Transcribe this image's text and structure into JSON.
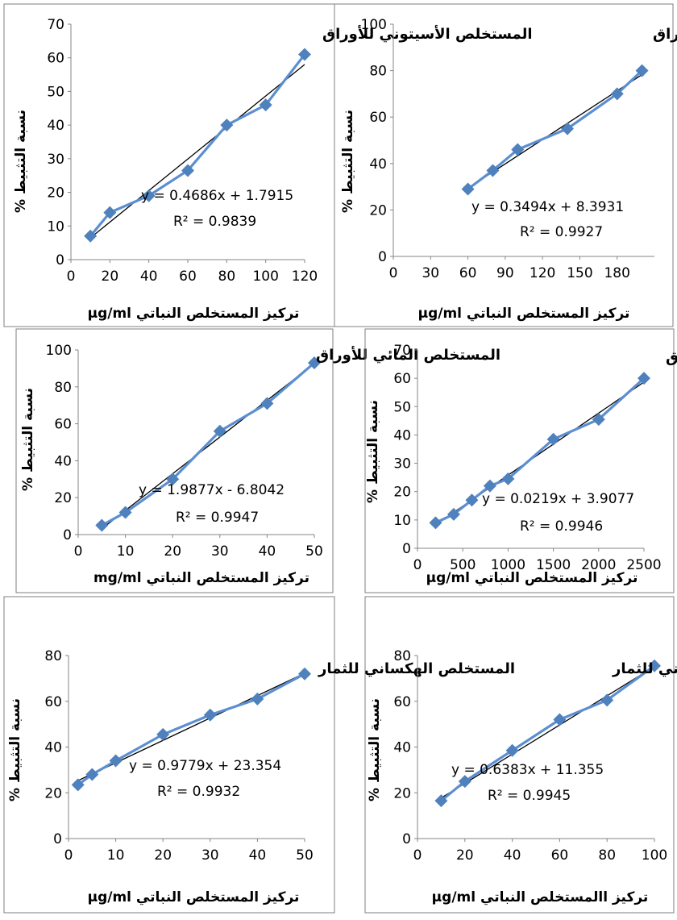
{
  "common": {
    "ylabel": "نسبة التثبيط %",
    "colors": {
      "series": "#5b8fd1",
      "marker": "#4f81bd",
      "trend": "#000000",
      "frame": "#7f7f7f",
      "text": "#000000"
    },
    "marker": "diamond"
  },
  "chart_data": [
    {
      "type": "scatter",
      "title": "المستخلص الأسيتوني للأوراق",
      "xlabel": "تركيز المستخلص النباتي µg/ml",
      "ylabel": "نسبة التثبيط %",
      "xlim": [
        0,
        120
      ],
      "ylim": [
        0,
        70
      ],
      "xticks": [
        0,
        20,
        40,
        60,
        80,
        100,
        120
      ],
      "yticks": [
        0,
        10,
        20,
        30,
        40,
        50,
        60,
        70
      ],
      "x": [
        10,
        20,
        40,
        60,
        80,
        100,
        120
      ],
      "y": [
        7,
        14,
        19,
        26.5,
        40,
        46,
        61
      ],
      "trendline": {
        "slope": 0.4686,
        "intercept": 1.7915
      },
      "equation": "y = 0.4686x + 1.7915",
      "r2": "R² = 0.9839"
    },
    {
      "type": "scatter",
      "title": "المستخلص الهكساني للأوراق",
      "xlabel": "تركيز المستخلص النباتي µg/ml",
      "ylabel": "نسبة التثبيط %",
      "xlim": [
        0,
        210
      ],
      "ylim": [
        0,
        100
      ],
      "xticks": [
        0,
        30,
        60,
        90,
        120,
        150,
        180
      ],
      "yticks": [
        0,
        20,
        40,
        60,
        80,
        100
      ],
      "x": [
        60,
        80,
        100,
        140,
        180,
        200
      ],
      "y": [
        29,
        37,
        46,
        55,
        70,
        80
      ],
      "trendline": {
        "slope": 0.3494,
        "intercept": 8.3931
      },
      "equation": "y = 0.3494x + 8.3931",
      "r2": "R² = 0.9927"
    },
    {
      "type": "scatter",
      "title": "المستخلص المائي للأوراق",
      "xlabel": "تركيز المستخلص النباتي mg/ml",
      "ylabel": "نسبة التثبيط %",
      "xlim": [
        0,
        50
      ],
      "ylim": [
        0,
        100
      ],
      "xticks": [
        0,
        10,
        20,
        30,
        40,
        50
      ],
      "yticks": [
        0,
        20,
        40,
        60,
        80,
        100
      ],
      "x": [
        5,
        10,
        20,
        30,
        40,
        50
      ],
      "y": [
        5,
        12,
        30,
        56,
        71,
        93
      ],
      "trendline": {
        "slope": 1.9877,
        "intercept": -6.8042
      },
      "equation": "y = 1.9877x - 6.8042",
      "r2": "R² = 0.9947"
    },
    {
      "type": "scatter",
      "title": "المستخلص الإيتانولي للأوراق",
      "xlabel": "تركيز المستخلص النباتي µg/ml",
      "ylabel": "نسبة التثبيط %",
      "xlim": [
        0,
        2500
      ],
      "ylim": [
        0,
        70
      ],
      "xticks": [
        0,
        500,
        1000,
        1500,
        2000,
        2500
      ],
      "yticks": [
        0,
        10,
        20,
        30,
        40,
        50,
        60,
        70
      ],
      "x": [
        200,
        400,
        600,
        800,
        1000,
        1500,
        2000,
        2500
      ],
      "y": [
        9,
        12,
        17,
        22,
        24.5,
        38.5,
        45.5,
        60
      ],
      "trendline": {
        "slope": 0.0219,
        "intercept": 3.9077
      },
      "equation": "y = 0.0219x + 3.9077",
      "r2": "R² = 0.9946"
    },
    {
      "type": "scatter",
      "title": "المستخلص الهكساني للثمار",
      "xlabel": "تركيز المستخلص النباتي µg/ml",
      "ylabel": "نسبة التثبيط %",
      "xlim": [
        0,
        50
      ],
      "ylim": [
        0,
        80
      ],
      "xticks": [
        0,
        10,
        20,
        30,
        40,
        50
      ],
      "yticks": [
        0,
        20,
        40,
        60,
        80
      ],
      "x": [
        2,
        5,
        10,
        20,
        30,
        40,
        50
      ],
      "y": [
        23.5,
        28,
        34,
        45.5,
        54,
        61,
        72
      ],
      "trendline": {
        "slope": 0.9779,
        "intercept": 23.354
      },
      "equation": "y = 0.9779x + 23.354",
      "r2": "R² = 0.9932"
    },
    {
      "type": "scatter",
      "title": "المستخلص الأسيتوني للثمار",
      "xlabel": "تركيز االمستخلص النباتي µg/ml",
      "ylabel": "نسبة التثبيط %",
      "xlim": [
        0,
        100
      ],
      "ylim": [
        0,
        80
      ],
      "xticks": [
        0,
        20,
        40,
        60,
        80,
        100
      ],
      "yticks": [
        0,
        20,
        40,
        60,
        80
      ],
      "x": [
        10,
        20,
        40,
        60,
        80,
        100
      ],
      "y": [
        16.5,
        25,
        38.5,
        52,
        60.5,
        75.5
      ],
      "trendline": {
        "slope": 0.6383,
        "intercept": 11.355
      },
      "equation": "y = 0.6383x + 11.355",
      "r2": "R² = 0.9945"
    }
  ]
}
